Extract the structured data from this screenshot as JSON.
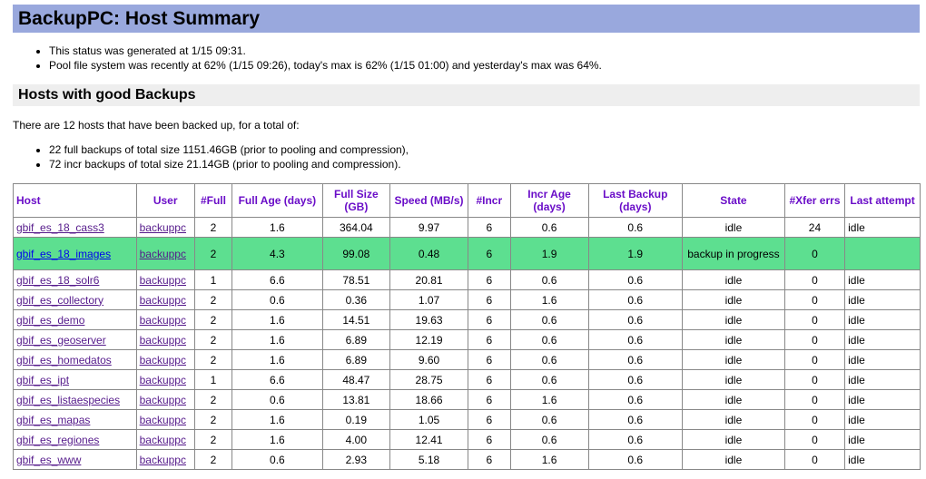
{
  "page": {
    "title": "BackupPC: Host Summary"
  },
  "status": {
    "generated": "This status was generated at 1/15 09:31.",
    "pool": "Pool file system was recently at 62% (1/15 09:26), today's max is 62% (1/15 01:00) and yesterday's max was 64%."
  },
  "section": {
    "title": "Hosts with good Backups"
  },
  "summary": {
    "intro": "There are 12 hosts that have been backed up, for a total of:",
    "full_line": "22 full backups of total size 1151.46GB (prior to pooling and compression),",
    "incr_line": "72 incr backups of total size 21.14GB (prior to pooling and compression)."
  },
  "table": {
    "columns": [
      "Host",
      "User",
      "#Full",
      "Full Age (days)",
      "Full Size (GB)",
      "Speed (MB/s)",
      "#Incr",
      "Incr Age (days)",
      "Last Backup (days)",
      "State",
      "#Xfer errs",
      "Last attempt"
    ],
    "rows": [
      {
        "host": "gbif_es_18_cass3",
        "user": "backuppc",
        "full": "2",
        "full_age": "1.6",
        "full_size": "364.04",
        "speed": "9.97",
        "incr": "6",
        "incr_age": "0.6",
        "last_backup": "0.6",
        "state": "idle",
        "xfer_errs": "24",
        "last_attempt": "idle"
      },
      {
        "host": "gbif_es_18_images",
        "user": "backuppc",
        "full": "2",
        "full_age": "4.3",
        "full_size": "99.08",
        "speed": "0.48",
        "incr": "6",
        "incr_age": "1.9",
        "last_backup": "1.9",
        "state": "backup in progress",
        "xfer_errs": "0",
        "last_attempt": ""
      },
      {
        "host": "gbif_es_18_solr6",
        "user": "backuppc",
        "full": "1",
        "full_age": "6.6",
        "full_size": "78.51",
        "speed": "20.81",
        "incr": "6",
        "incr_age": "0.6",
        "last_backup": "0.6",
        "state": "idle",
        "xfer_errs": "0",
        "last_attempt": "idle"
      },
      {
        "host": "gbif_es_collectory",
        "user": "backuppc",
        "full": "2",
        "full_age": "0.6",
        "full_size": "0.36",
        "speed": "1.07",
        "incr": "6",
        "incr_age": "1.6",
        "last_backup": "0.6",
        "state": "idle",
        "xfer_errs": "0",
        "last_attempt": "idle"
      },
      {
        "host": "gbif_es_demo",
        "user": "backuppc",
        "full": "2",
        "full_age": "1.6",
        "full_size": "14.51",
        "speed": "19.63",
        "incr": "6",
        "incr_age": "0.6",
        "last_backup": "0.6",
        "state": "idle",
        "xfer_errs": "0",
        "last_attempt": "idle"
      },
      {
        "host": "gbif_es_geoserver",
        "user": "backuppc",
        "full": "2",
        "full_age": "1.6",
        "full_size": "6.89",
        "speed": "12.19",
        "incr": "6",
        "incr_age": "0.6",
        "last_backup": "0.6",
        "state": "idle",
        "xfer_errs": "0",
        "last_attempt": "idle"
      },
      {
        "host": "gbif_es_homedatos",
        "user": "backuppc",
        "full": "2",
        "full_age": "1.6",
        "full_size": "6.89",
        "speed": "9.60",
        "incr": "6",
        "incr_age": "0.6",
        "last_backup": "0.6",
        "state": "idle",
        "xfer_errs": "0",
        "last_attempt": "idle"
      },
      {
        "host": "gbif_es_ipt",
        "user": "backuppc",
        "full": "1",
        "full_age": "6.6",
        "full_size": "48.47",
        "speed": "28.75",
        "incr": "6",
        "incr_age": "0.6",
        "last_backup": "0.6",
        "state": "idle",
        "xfer_errs": "0",
        "last_attempt": "idle"
      },
      {
        "host": "gbif_es_listaespecies",
        "user": "backuppc",
        "full": "2",
        "full_age": "0.6",
        "full_size": "13.81",
        "speed": "18.66",
        "incr": "6",
        "incr_age": "1.6",
        "last_backup": "0.6",
        "state": "idle",
        "xfer_errs": "0",
        "last_attempt": "idle"
      },
      {
        "host": "gbif_es_mapas",
        "user": "backuppc",
        "full": "2",
        "full_age": "1.6",
        "full_size": "0.19",
        "speed": "1.05",
        "incr": "6",
        "incr_age": "0.6",
        "last_backup": "0.6",
        "state": "idle",
        "xfer_errs": "0",
        "last_attempt": "idle"
      },
      {
        "host": "gbif_es_regiones",
        "user": "backuppc",
        "full": "2",
        "full_age": "1.6",
        "full_size": "4.00",
        "speed": "12.41",
        "incr": "6",
        "incr_age": "0.6",
        "last_backup": "0.6",
        "state": "idle",
        "xfer_errs": "0",
        "last_attempt": "idle"
      },
      {
        "host": "gbif_es_www",
        "user": "backuppc",
        "full": "2",
        "full_age": "0.6",
        "full_size": "2.93",
        "speed": "5.18",
        "incr": "6",
        "incr_age": "1.6",
        "last_backup": "0.6",
        "state": "idle",
        "xfer_errs": "0",
        "last_attempt": "idle"
      }
    ]
  },
  "colors": {
    "header_bg": "#99a8dd",
    "section_bg": "#eeeeee",
    "column_header_text": "#6a0dc8",
    "in_progress_row": "#5ddf90",
    "link": "#551a8b"
  }
}
